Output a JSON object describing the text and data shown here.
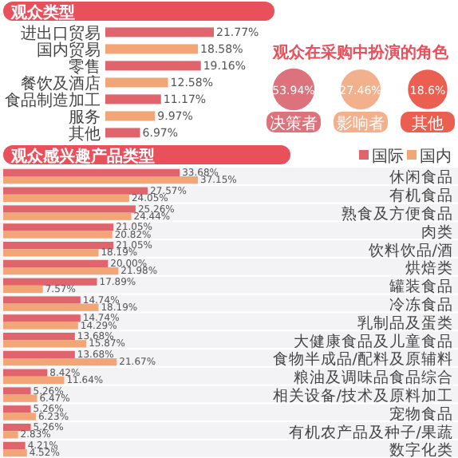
{
  "chart_data": [
    {
      "type": "bar",
      "orientation": "horizontal",
      "title": "观众类型",
      "categories": [
        "进出口贸易",
        "国内贸易",
        "零售",
        "餐饮及酒店",
        "食品制造加工",
        "服务",
        "其他"
      ],
      "values": [
        21.77,
        18.58,
        19.16,
        12.58,
        11.17,
        9.97,
        6.97
      ],
      "colors": [
        "#e0646c",
        "#f2a577",
        "#e0646c",
        "#f2a577",
        "#e0646c",
        "#f2a577",
        "#e0646c"
      ],
      "value_labels": [
        "21.77%",
        "18.58%",
        "19.16%",
        "12.58%",
        "11.17%",
        "9.97%",
        "6.97%"
      ]
    },
    {
      "type": "other",
      "title": "观众在采购中扮演的角色",
      "categories": [
        "决策者",
        "影响者",
        "其他"
      ],
      "values": [
        53.94,
        27.46,
        18.6
      ],
      "colors": [
        "#dc737c",
        "#f2b08c",
        "#ea5f50"
      ],
      "value_labels": [
        "53.94%",
        "27.46%",
        "18.6%"
      ]
    },
    {
      "type": "bar",
      "orientation": "horizontal",
      "title": "观众感兴趣产品类型",
      "legend": "top right",
      "categories": [
        "休闲食品",
        "有机食品",
        "熟食及方便食品",
        "肉类",
        "饮料饮品/酒",
        "烘焙类",
        "罐装食品",
        "冷冻食品",
        "乳制品及蛋类",
        "大健康食品及儿童食品",
        "食物半成品/配料及原辅料",
        "粮油及调味品食品综合",
        "相关设备/技术及原料加工",
        "宠物食品",
        "有机农产品及种子/果蔬",
        "数字化类"
      ],
      "series": [
        {
          "name": "国际",
          "color": "#e0646c",
          "values": [
            33.68,
            27.57,
            25.26,
            21.05,
            21.05,
            20.0,
            17.89,
            14.74,
            14.74,
            13.68,
            13.68,
            8.42,
            5.26,
            5.26,
            5.26,
            4.21
          ],
          "value_labels": [
            "33.68%",
            "27.57%",
            "25.26%",
            "21.05%",
            "21.05%",
            "20.00%",
            "17.89%",
            "14.74%",
            "14.74%",
            "13.68%",
            "13.68%",
            "8.42%",
            "5.26%",
            "5.26%",
            "5.26%",
            "4.21%"
          ]
        },
        {
          "name": "国内",
          "color": "#f2a577",
          "values": [
            37.15,
            24.05,
            24.44,
            20.82,
            18.19,
            21.98,
            7.57,
            18.19,
            14.29,
            15.87,
            21.67,
            11.64,
            6.47,
            6.23,
            2.83,
            4.52
          ],
          "value_labels": [
            "37.15%",
            "24.05%",
            "24.44%",
            "20.82%",
            "18.19%",
            "21.98%",
            "7.57%",
            "18.19%",
            "14.29%",
            "15.87%",
            "21.67%",
            "11.64%",
            "6.47%",
            "6.23%",
            "2.83%",
            "4.52%"
          ]
        }
      ]
    }
  ]
}
